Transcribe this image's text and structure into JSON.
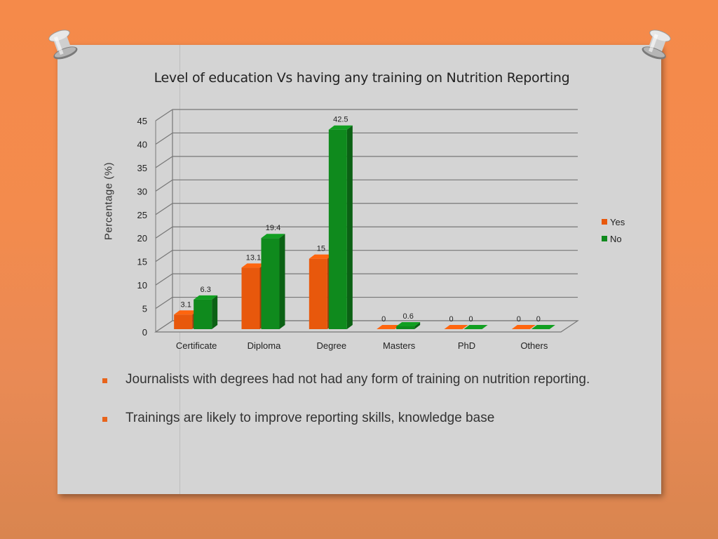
{
  "chart_data": {
    "type": "bar",
    "title": "Level of education Vs having any training on Nutrition Reporting",
    "ylabel": "Percentage (%)",
    "xlabel": "",
    "categories": [
      "Certificate",
      "Diploma",
      "Degree",
      "Masters",
      "PhD",
      "Others"
    ],
    "series": [
      {
        "name": "Yes",
        "color": "#e8580c",
        "values": [
          3.1,
          13.1,
          15,
          0,
          0,
          0
        ]
      },
      {
        "name": "No",
        "color": "#0f8a1d",
        "values": [
          6.3,
          19.4,
          42.5,
          0.6,
          0,
          0
        ]
      }
    ],
    "ylim": [
      0,
      45
    ],
    "yticks": [
      0,
      5,
      10,
      15,
      20,
      25,
      30,
      35,
      40,
      45
    ],
    "grid": true,
    "legend_position": "right",
    "style": "3d-clustered"
  },
  "bullets": [
    "Journalists with degrees had not had any form of training on nutrition reporting.",
    "Trainings are likely to improve reporting skills, knowledge base"
  ],
  "colors": {
    "accent": "#e8641b",
    "board": "#d4d4d4"
  }
}
